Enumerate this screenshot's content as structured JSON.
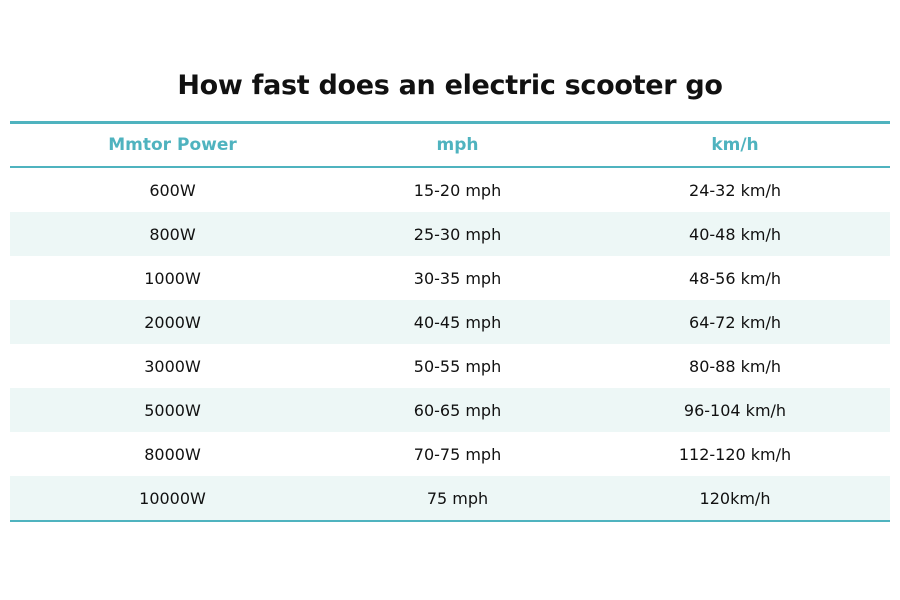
{
  "title": "How fast does an electric scooter go",
  "table": {
    "header": [
      "Mmtor Power",
      "mph",
      "km/h"
    ],
    "rows": [
      [
        "600W",
        "15-20 mph",
        "24-32 km/h"
      ],
      [
        "800W",
        "25-30 mph",
        "40-48 km/h"
      ],
      [
        "1000W",
        "30-35 mph",
        "48-56 km/h"
      ],
      [
        "2000W",
        "40-45 mph",
        "64-72 km/h"
      ],
      [
        "3000W",
        "50-55 mph",
        "80-88 km/h"
      ],
      [
        "5000W",
        "60-65 mph",
        "96-104 km/h"
      ],
      [
        "8000W",
        "70-75 mph",
        "112-120 km/h"
      ],
      [
        "10000W",
        "75 mph",
        "120km/h"
      ]
    ]
  }
}
